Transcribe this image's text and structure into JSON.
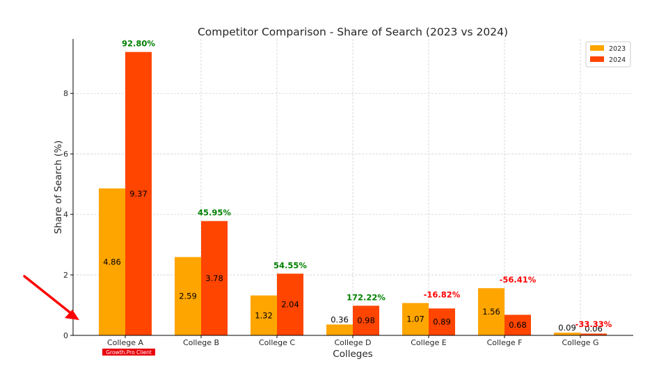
{
  "chart_data": {
    "type": "bar",
    "title": "Competitor Comparison - Share of Search (2023 vs 2024)",
    "xlabel": "Colleges",
    "ylabel": "Share of Search (%)",
    "ylim": [
      0,
      9.8
    ],
    "yticks": [
      0,
      2,
      4,
      6,
      8
    ],
    "grid": true,
    "legend_position": "top-right",
    "categories": [
      "College A",
      "College B",
      "College C",
      "College D",
      "College E",
      "College F",
      "College G"
    ],
    "series": [
      {
        "name": "2023",
        "color": "#FFA500",
        "values": [
          4.86,
          2.59,
          1.32,
          0.36,
          1.07,
          1.56,
          0.09
        ]
      },
      {
        "name": "2024",
        "color": "#FF4500",
        "values": [
          9.37,
          3.78,
          2.04,
          0.98,
          0.89,
          0.68,
          0.06
        ]
      }
    ],
    "change_labels": [
      "92.80%",
      "45.95%",
      "54.55%",
      "172.22%",
      "-16.82%",
      "-56.41%",
      "-33.33%"
    ],
    "change_colors": {
      "positive": "#008000",
      "negative": "#FF0000"
    }
  },
  "annotation": {
    "badge_text": "Growth.Pro Client",
    "badge_color": "#E8000B",
    "arrow_color": "#FF0000",
    "target_category": "College A"
  }
}
